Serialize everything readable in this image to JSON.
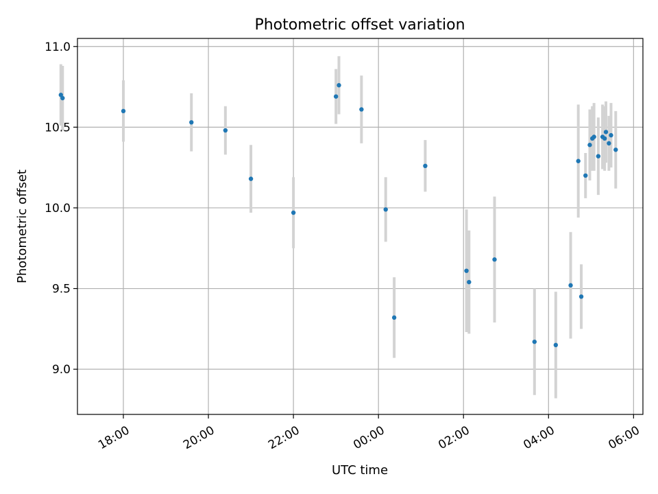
{
  "chart_data": {
    "type": "scatter",
    "title": "Photometric offset variation",
    "xlabel": "UTC time",
    "ylabel": "Photometric offset",
    "x_unit": "hours since 00:00 UTC (negative = previous day)",
    "xlim": [
      -7.08,
      6.22
    ],
    "ylim": [
      8.72,
      11.05
    ],
    "grid": true,
    "x_ticks": [
      {
        "value": -6,
        "label": "18:00"
      },
      {
        "value": -4,
        "label": "20:00"
      },
      {
        "value": -2,
        "label": "22:00"
      },
      {
        "value": 0,
        "label": "00:00"
      },
      {
        "value": 2,
        "label": "02:00"
      },
      {
        "value": 4,
        "label": "04:00"
      },
      {
        "value": 6,
        "label": "06:00"
      }
    ],
    "y_ticks": [
      {
        "value": 9.0,
        "label": "9.0"
      },
      {
        "value": 9.5,
        "label": "9.5"
      },
      {
        "value": 10.0,
        "label": "10.0"
      },
      {
        "value": 10.5,
        "label": "10.5"
      },
      {
        "value": 11.0,
        "label": "11.0"
      }
    ],
    "series": [
      {
        "name": "offset",
        "marker_color": "#1f77b4",
        "error_color": "#d3d3d3",
        "points": [
          {
            "x": -7.47,
            "y": 10.7,
            "err": 0.19
          },
          {
            "x": -7.43,
            "y": 10.68,
            "err": 0.2
          },
          {
            "x": -6.0,
            "y": 10.6,
            "err": 0.19
          },
          {
            "x": -4.4,
            "y": 10.53,
            "err": 0.18
          },
          {
            "x": -3.6,
            "y": 10.48,
            "err": 0.15
          },
          {
            "x": -3.0,
            "y": 10.18,
            "err": 0.21
          },
          {
            "x": -2.0,
            "y": 9.97,
            "err": 0.22
          },
          {
            "x": -1.0,
            "y": 10.69,
            "err": 0.17
          },
          {
            "x": -0.93,
            "y": 10.76,
            "err": 0.18
          },
          {
            "x": -0.4,
            "y": 10.61,
            "err": 0.21
          },
          {
            "x": 0.17,
            "y": 9.99,
            "err": 0.2
          },
          {
            "x": 0.37,
            "y": 9.32,
            "err": 0.25
          },
          {
            "x": 1.1,
            "y": 10.26,
            "err": 0.16
          },
          {
            "x": 2.07,
            "y": 9.61,
            "err": 0.38
          },
          {
            "x": 2.13,
            "y": 9.54,
            "err": 0.32
          },
          {
            "x": 2.73,
            "y": 9.68,
            "err": 0.39
          },
          {
            "x": 3.67,
            "y": 9.17,
            "err": 0.33
          },
          {
            "x": 4.17,
            "y": 9.15,
            "err": 0.33
          },
          {
            "x": 4.52,
            "y": 9.52,
            "err": 0.33
          },
          {
            "x": 4.77,
            "y": 9.45,
            "err": 0.2
          },
          {
            "x": 4.7,
            "y": 10.29,
            "err": 0.35
          },
          {
            "x": 4.87,
            "y": 10.2,
            "err": 0.14
          },
          {
            "x": 4.97,
            "y": 10.39,
            "err": 0.22
          },
          {
            "x": 5.03,
            "y": 10.43,
            "err": 0.2
          },
          {
            "x": 5.07,
            "y": 10.44,
            "err": 0.21
          },
          {
            "x": 5.17,
            "y": 10.32,
            "err": 0.24
          },
          {
            "x": 5.27,
            "y": 10.44,
            "err": 0.2
          },
          {
            "x": 5.32,
            "y": 10.43,
            "err": 0.2
          },
          {
            "x": 5.35,
            "y": 10.47,
            "err": 0.19
          },
          {
            "x": 5.42,
            "y": 10.4,
            "err": 0.17
          },
          {
            "x": 5.47,
            "y": 10.45,
            "err": 0.2
          },
          {
            "x": 5.58,
            "y": 10.36,
            "err": 0.24
          }
        ]
      }
    ]
  }
}
